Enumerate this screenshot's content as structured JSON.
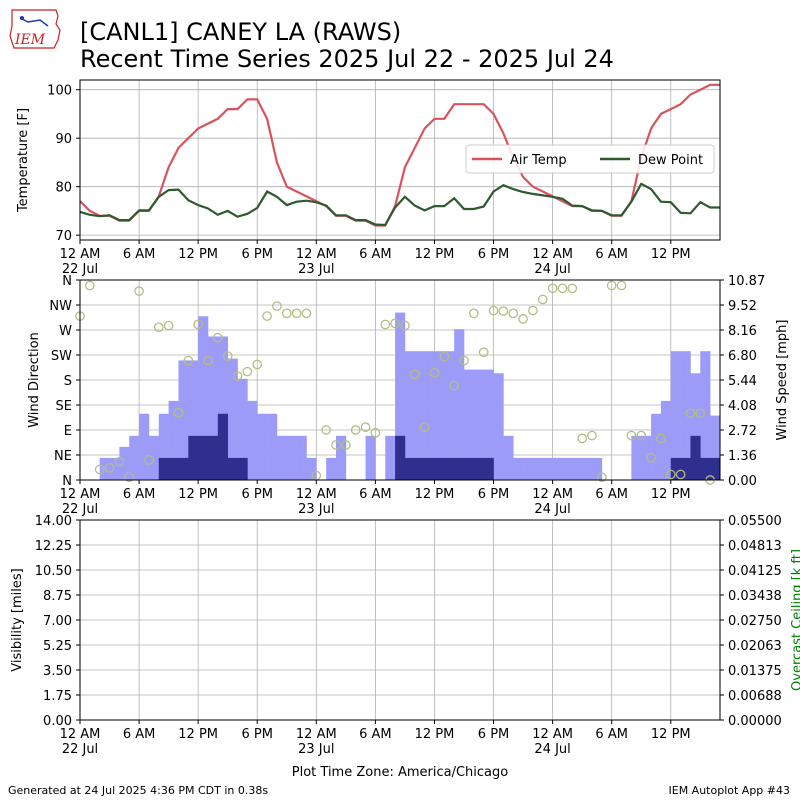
{
  "header": {
    "title_line1": "[CANL1] CANEY  LA  (RAWS)",
    "title_line2": "Recent Time Series 2025 Jul 22 - 2025 Jul 24",
    "logo_text": "IEM"
  },
  "footer": {
    "generated": "Generated at 24 Jul 2025 4:36 PM CDT in 0.38s",
    "app": "IEM Autoplot App #43",
    "xlabel": "Plot Time Zone: America/Chicago"
  },
  "colors": {
    "air_temp": "#d9535d",
    "dew_point": "#2f5a30",
    "gust_bar": "#9c9cf8",
    "speed_bar": "#2f2f8f",
    "direction_marker": "#b3bd82",
    "ceiling_label": "#008000"
  },
  "time_axis": {
    "range_hours": [
      0,
      65
    ],
    "ticks": [
      {
        "hour": 0,
        "label": "12 AM",
        "date": "22 Jul"
      },
      {
        "hour": 6,
        "label": "6 AM",
        "date": ""
      },
      {
        "hour": 12,
        "label": "12 PM",
        "date": ""
      },
      {
        "hour": 18,
        "label": "6 PM",
        "date": ""
      },
      {
        "hour": 24,
        "label": "12 AM",
        "date": "23 Jul"
      },
      {
        "hour": 30,
        "label": "6 AM",
        "date": ""
      },
      {
        "hour": 36,
        "label": "12 PM",
        "date": ""
      },
      {
        "hour": 42,
        "label": "6 PM",
        "date": ""
      },
      {
        "hour": 48,
        "label": "12 AM",
        "date": "24 Jul"
      },
      {
        "hour": 54,
        "label": "6 AM",
        "date": ""
      },
      {
        "hour": 60,
        "label": "12 PM",
        "date": ""
      }
    ]
  },
  "chart_data": [
    {
      "type": "line",
      "ylabel": "Temperature [F]",
      "ylim": [
        69,
        102
      ],
      "yticks": [
        70,
        80,
        90,
        100
      ],
      "grid": true,
      "legend_position": "right",
      "series": [
        {
          "name": "Air Temp",
          "x": [
            0,
            1,
            2,
            3,
            4,
            5,
            6,
            7,
            8,
            9,
            10,
            11,
            12,
            13,
            14,
            15,
            16,
            17,
            18,
            19,
            20,
            21,
            22,
            23,
            24,
            25,
            26,
            27,
            28,
            29,
            30,
            31,
            32,
            33,
            34,
            35,
            36,
            37,
            38,
            39,
            40,
            41,
            42,
            43,
            44,
            45,
            46,
            47,
            48,
            49,
            50,
            51,
            52,
            53,
            54,
            55,
            56,
            57,
            58,
            59,
            60,
            61,
            62,
            63,
            64,
            65
          ],
          "values": [
            77,
            75,
            74,
            74,
            73,
            73,
            75,
            75,
            78,
            84,
            88,
            90,
            92,
            93,
            94,
            96,
            96,
            98,
            98,
            94,
            85,
            80,
            79,
            78,
            77,
            76,
            74,
            74,
            73,
            73,
            72,
            72,
            76,
            84,
            88,
            92,
            94,
            94,
            97,
            97,
            97,
            97,
            95,
            91,
            86,
            82,
            80,
            79,
            78,
            77,
            76,
            76,
            75,
            75,
            74,
            74,
            77,
            86,
            92,
            95,
            96,
            97,
            99,
            100,
            101,
            101
          ]
        },
        {
          "name": "Dew Point",
          "x": [
            0,
            1,
            2,
            3,
            4,
            5,
            6,
            7,
            8,
            9,
            10,
            11,
            12,
            13,
            14,
            15,
            16,
            17,
            18,
            19,
            20,
            21,
            22,
            23,
            24,
            25,
            26,
            27,
            28,
            29,
            30,
            31,
            32,
            33,
            34,
            35,
            36,
            37,
            38,
            39,
            40,
            41,
            42,
            43,
            44,
            45,
            46,
            47,
            48,
            49,
            50,
            51,
            52,
            53,
            54,
            55,
            56,
            57,
            58,
            59,
            60,
            61,
            62,
            63,
            64,
            65
          ],
          "values": [
            74.8,
            74.2,
            73.9,
            74.1,
            73.1,
            73.1,
            75.1,
            75.1,
            77.9,
            79.3,
            79.4,
            77.2,
            76.2,
            75.5,
            74.2,
            75,
            73.8,
            74.4,
            75.6,
            79,
            77.9,
            76.2,
            76.9,
            77.1,
            76.8,
            76.1,
            74.1,
            74.1,
            73.1,
            73.1,
            72.2,
            72.1,
            75.7,
            77.9,
            76.1,
            75.1,
            76,
            76,
            77.6,
            75.4,
            75.4,
            75.9,
            79,
            80.3,
            79.5,
            78.9,
            78.5,
            78.2,
            77.9,
            77.5,
            76.1,
            76,
            75.1,
            75,
            74.1,
            74.1,
            76.9,
            80.6,
            79.5,
            76.9,
            76.8,
            74.6,
            74.5,
            76.8,
            75.7,
            75.7
          ]
        }
      ]
    },
    {
      "type": "bar",
      "ylabel": "Wind Direction",
      "y2label": "Wind Speed [mph]",
      "direction_ticks": [
        "N",
        "NE",
        "E",
        "SE",
        "S",
        "SW",
        "W",
        "NW",
        "N"
      ],
      "speed_ticks": [
        "0.00",
        "1.36",
        "2.72",
        "4.08",
        "5.44",
        "6.80",
        "8.16",
        "9.52",
        "10.87"
      ],
      "speed_lim": [
        0,
        10.87
      ],
      "grid": true,
      "series": [
        {
          "name": "gust",
          "x": [
            0,
            1,
            2,
            3,
            4,
            5,
            6,
            7,
            8,
            9,
            10,
            11,
            12,
            13,
            14,
            15,
            16,
            17,
            18,
            19,
            20,
            21,
            22,
            23,
            24,
            25,
            26,
            27,
            28,
            29,
            30,
            31,
            32,
            33,
            34,
            35,
            36,
            37,
            38,
            39,
            40,
            41,
            42,
            43,
            44,
            45,
            46,
            47,
            48,
            49,
            50,
            51,
            52,
            53,
            54,
            55,
            56,
            57,
            58,
            59,
            60,
            61,
            62,
            63,
            64
          ],
          "values": [
            0,
            0,
            1.2,
            1.2,
            1.8,
            2.4,
            3.6,
            2.4,
            3.6,
            4.3,
            6.5,
            6.5,
            8.9,
            7.8,
            7.8,
            6.6,
            5.5,
            4.3,
            3.6,
            3.6,
            2.4,
            2.4,
            2.4,
            1.2,
            0,
            1.2,
            2.4,
            0,
            0,
            2.4,
            0,
            2.4,
            9.1,
            7.0,
            7.0,
            7.0,
            7.0,
            7.0,
            8.2,
            6.0,
            6.0,
            6.0,
            5.8,
            2.4,
            1.2,
            1.2,
            1.2,
            1.2,
            1.2,
            1.2,
            1.2,
            1.2,
            1.2,
            0,
            0,
            0,
            2.4,
            2.4,
            3.6,
            4.3,
            7.0,
            7.0,
            5.8,
            7.0,
            3.5
          ]
        },
        {
          "name": "speed",
          "x": [
            8,
            9,
            10,
            11,
            12,
            13,
            14,
            15,
            16,
            32,
            33,
            34,
            35,
            36,
            37,
            38,
            39,
            40,
            41,
            58,
            59,
            60,
            61,
            62,
            63,
            64
          ],
          "values": [
            1.2,
            1.2,
            1.2,
            2.4,
            2.4,
            2.4,
            3.6,
            1.2,
            1.2,
            2.4,
            1.2,
            1.2,
            1.2,
            1.2,
            1.2,
            1.2,
            1.2,
            1.2,
            1.2,
            0,
            0,
            1.2,
            1.2,
            2.4,
            1.2,
            1.2
          ]
        },
        {
          "name": "direction",
          "x": [
            0,
            1,
            2,
            3,
            4,
            5,
            6,
            7,
            8,
            9,
            10,
            11,
            12,
            13,
            14,
            15,
            16,
            17,
            18,
            19,
            20,
            21,
            22,
            23,
            24,
            25,
            26,
            27,
            28,
            29,
            30,
            31,
            32,
            33,
            34,
            35,
            36,
            37,
            38,
            39,
            40,
            41,
            42,
            43,
            44,
            45,
            46,
            47,
            48,
            49,
            50,
            51,
            52,
            53,
            54,
            55,
            56,
            57,
            58,
            59,
            60,
            61,
            62,
            63,
            64
          ],
          "values": [
            295,
            350,
            19,
            22,
            33,
            5,
            340,
            36,
            275,
            278,
            121,
            215,
            280,
            215,
            256,
            223,
            187,
            195,
            208,
            295,
            313,
            300,
            300,
            300,
            8,
            90,
            63,
            63,
            90,
            95,
            85,
            280,
            282,
            278,
            190,
            95,
            193,
            222,
            170,
            215,
            300,
            230,
            305,
            304,
            300,
            290,
            305,
            325,
            345,
            345,
            345,
            75,
            80,
            5,
            350,
            350,
            80,
            80,
            40,
            75,
            10,
            10,
            120,
            120,
            0
          ]
        }
      ]
    },
    {
      "type": "line",
      "ylabel": "Visibility [miles]",
      "y2label": "Overcast Ceiling [k ft]",
      "ylim": [
        0,
        14
      ],
      "yticks": [
        "0.00",
        "1.75",
        "3.50",
        "5.25",
        "7.00",
        "8.75",
        "10.50",
        "12.25",
        "14.00"
      ],
      "y2lim": [
        0,
        0.055
      ],
      "y2ticks": [
        "0.00000",
        "0.00688",
        "0.01375",
        "0.02063",
        "0.02750",
        "0.03438",
        "0.04125",
        "0.04813",
        "0.05500"
      ],
      "grid": true,
      "series": []
    }
  ]
}
